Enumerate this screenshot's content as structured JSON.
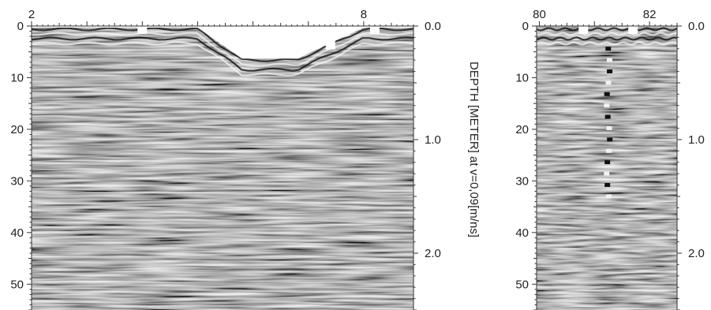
{
  "chart_data": [
    {
      "type": "heatmap",
      "panel": "left",
      "x_ticks": [
        "2",
        "8"
      ],
      "x_tick_values": [
        2,
        8
      ],
      "xlim": [
        2,
        8.9
      ],
      "y_left_ticks": [
        "0",
        "10",
        "20",
        "30",
        "40",
        "50"
      ],
      "y_left_values": [
        0,
        10,
        20,
        30,
        40,
        50
      ],
      "y_left_lim": [
        0,
        55
      ],
      "y_right_ticks": [
        "0.0",
        "1.0",
        "2.0"
      ],
      "y_right_values": [
        0.0,
        1.0,
        2.0
      ],
      "y_right_label": "DEPTH [METER] at v=0,09[m/ns]",
      "surface_profile_x": [
        2.0,
        5.0,
        5.8,
        6.8,
        8.0,
        8.9
      ],
      "surface_profile_y": [
        0,
        0,
        6,
        6,
        0,
        0
      ],
      "markers_x": [
        4.0,
        7.4,
        8.2
      ],
      "grid": false
    },
    {
      "type": "heatmap",
      "panel": "right",
      "x_ticks": [
        "80",
        "82"
      ],
      "x_tick_values": [
        80,
        82
      ],
      "xlim": [
        79.95,
        82.5
      ],
      "y_left_ticks": [
        "0",
        "10",
        "20",
        "30",
        "40",
        "50"
      ],
      "y_left_values": [
        0,
        10,
        20,
        30,
        40,
        50
      ],
      "y_left_lim": [
        0,
        55
      ],
      "y_right_ticks": [
        "0.0",
        "1.0",
        "2.0"
      ],
      "y_right_values": [
        0.0,
        1.0,
        2.0
      ],
      "markers_x": [
        80.8,
        81.7
      ],
      "grid": false
    }
  ],
  "colors": {
    "background": "#ffffff",
    "radargram_mid": "#8a8a8a",
    "axis": "#333333",
    "marker": "#ffffff"
  }
}
